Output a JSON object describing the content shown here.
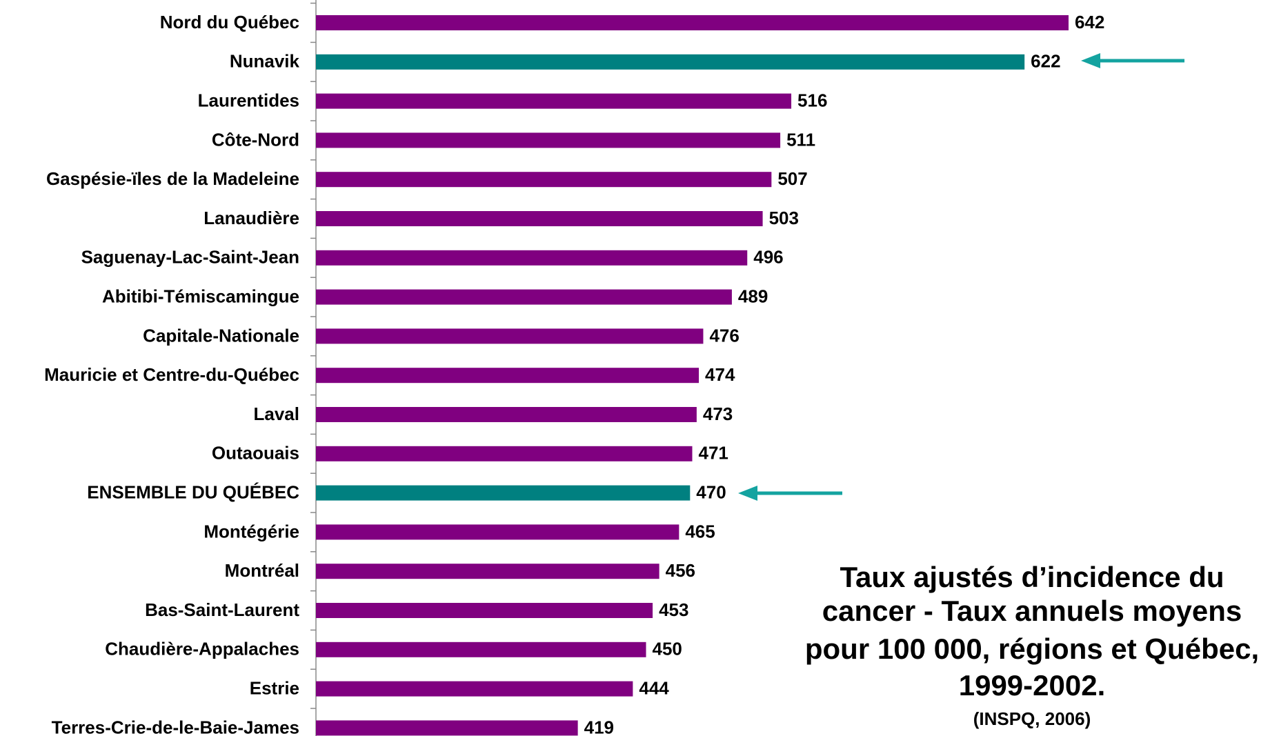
{
  "chart_data": {
    "type": "barh",
    "title": [
      "Taux ajustés d’incidence du",
      "cancer - Taux annuels moyens",
      "pour 100 000, régions et Québec,",
      "1999-2002."
    ],
    "subtitle": "(INSPQ, 2006)",
    "categories": [
      "Nord du Québec",
      "Nunavik",
      "Laurentides",
      "Côte-Nord",
      "Gaspésie-ïles de la Madeleine",
      "Lanaudière",
      "Saguenay-Lac-Saint-Jean",
      "Abitibi-Témiscamingue",
      "Capitale-Nationale",
      "Mauricie et Centre-du-Québec",
      "Laval",
      "Outaouais",
      "ENSEMBLE DU QUÉBEC",
      "Montégérie",
      "Montréal",
      "Bas-Saint-Laurent",
      "Chaudière-Appalaches",
      "Estrie",
      "Terres-Crie-de-le-Baie-James"
    ],
    "values": [
      642,
      622,
      516,
      511,
      507,
      503,
      496,
      489,
      476,
      474,
      473,
      471,
      470,
      465,
      456,
      453,
      450,
      444,
      419
    ],
    "colors": [
      "#800080",
      "#008080",
      "#800080",
      "#800080",
      "#800080",
      "#800080",
      "#800080",
      "#800080",
      "#800080",
      "#800080",
      "#800080",
      "#800080",
      "#008080",
      "#800080",
      "#800080",
      "#800080",
      "#800080",
      "#800080",
      "#800080"
    ],
    "xlim": [
      300,
      700
    ]
  }
}
